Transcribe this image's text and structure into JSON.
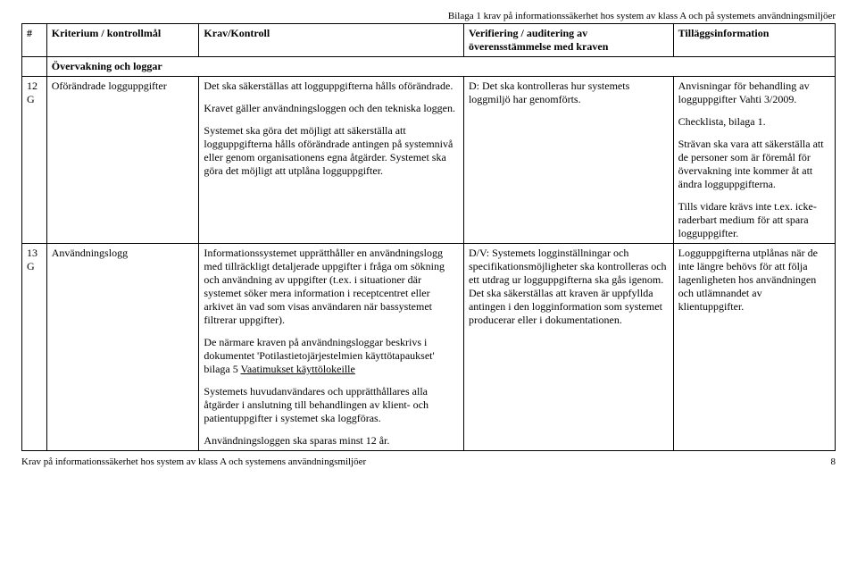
{
  "header_note": "Bilaga 1 krav på informationssäkerhet hos system av klass A och på systemets användningsmiljöer",
  "columns": {
    "num": "#",
    "crit": "Kriterium / kontrollmål",
    "krav": "Krav/Kontroll",
    "verif": "Verifiering / auditering av överensstämmelse med kraven",
    "info": "Tilläggsinformation"
  },
  "section_title": "Övervakning och loggar",
  "row12": {
    "num": "12 G",
    "crit": "Oförändrade logguppgifter",
    "krav_p1": "Det ska säkerställas att logguppgifterna hålls oförändrade.",
    "krav_p2": "Kravet gäller användningsloggen och den tekniska loggen.",
    "krav_p3": "Systemet ska göra det möjligt att säkerställa att logguppgifterna hålls oförändrade antingen på systemnivå eller genom organisationens egna åtgärder. Systemet ska göra det möjligt att utplåna logguppgifter.",
    "verif": "D: Det ska kontrolleras hur systemets loggmiljö har genomförts.",
    "info_p1": "Anvisningar för behandling av logguppgifter Vahti 3/2009.",
    "info_p2": "Checklista, bilaga 1.",
    "info_p3": "Strävan ska vara att säkerställa att de personer som är föremål för övervakning inte kommer åt att ändra logguppgifterna.",
    "info_p4": "Tills vidare krävs inte t.ex. icke-raderbart medium för att spara logguppgifter."
  },
  "row13": {
    "num": "13 G",
    "crit": "Användningslogg",
    "krav_p1": "Informationssystemet upprätthåller en användningslogg med tillräckligt detaljerade uppgifter i fråga om sökning och användning av uppgifter (t.ex. i situationer där systemet söker mera information i receptcentret eller arkivet än vad som visas användaren när bassystemet filtrerar uppgifter).",
    "krav_p2a": "De närmare kraven på användningsloggar beskrivs i dokumentet 'Potilastietojärjestelmien käyttötapaukset' bilaga 5 ",
    "krav_p2b": "Vaatimukset käyttölokeille",
    "krav_p3": "Systemets huvudanvändares och upprätthållares alla åtgärder i anslutning till behandlingen av klient- och patientuppgifter i systemet ska loggföras.",
    "krav_p4": "Användningsloggen ska sparas minst 12 år.",
    "verif": "D/V: Systemets logginställningar och specifikationsmöjligheter ska kontrolleras och ett utdrag ur logguppgifterna ska gås igenom. Det ska säkerställas att kraven är uppfyllda antingen i den logginformation som systemet producerar eller i dokumentationen.",
    "info": "Logguppgifterna utplånas när de inte längre behövs för att följa lagenligheten hos användningen och utlämnandet av klientuppgifter."
  },
  "footer_left": "Krav på informationssäkerhet hos system av klass A och systemens användningsmiljöer",
  "footer_page": "8"
}
